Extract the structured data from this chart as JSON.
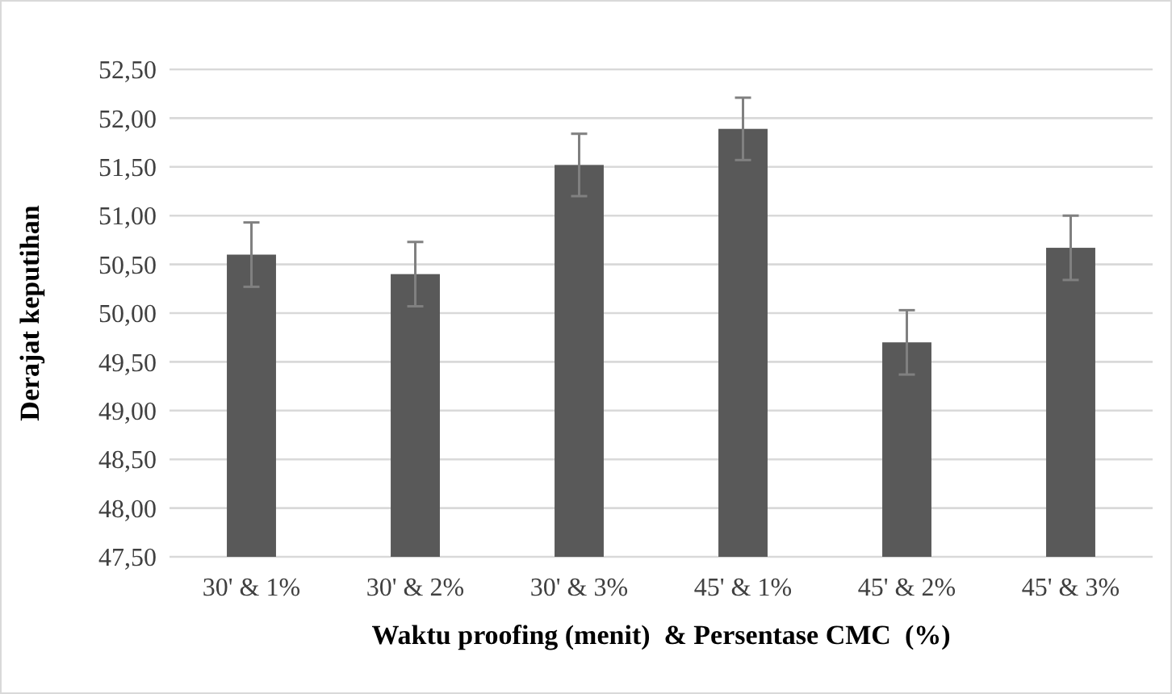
{
  "chart_data": {
    "type": "bar",
    "xlabel": "Waktu proofing (menit)  & Persentase CMC  (%)",
    "ylabel": "Derajat keputihan",
    "categories": [
      "30' & 1%",
      "30' & 2%",
      "30' & 3%",
      "45' & 1%",
      "45' & 2%",
      "45' & 3%"
    ],
    "values": [
      50.6,
      50.4,
      51.52,
      51.89,
      49.7,
      50.67
    ],
    "errors": [
      0.33,
      0.33,
      0.32,
      0.32,
      0.33,
      0.33
    ],
    "color": "#595959",
    "ylim": [
      47.5,
      52.5
    ],
    "yticks": [
      {
        "value": 47.5,
        "label": "47,50"
      },
      {
        "value": 48,
        "label": "48,00"
      },
      {
        "value": 48.5,
        "label": "48,50"
      },
      {
        "value": 49,
        "label": "49,00"
      },
      {
        "value": 49.5,
        "label": "49,50"
      },
      {
        "value": 50,
        "label": "50,00"
      },
      {
        "value": 50.5,
        "label": "50,50"
      },
      {
        "value": 51,
        "label": "51,00"
      },
      {
        "value": 51.5,
        "label": "51,50"
      },
      {
        "value": 52,
        "label": "52,00"
      },
      {
        "value": 52.5,
        "label": "52,50"
      }
    ],
    "grid": "y"
  }
}
